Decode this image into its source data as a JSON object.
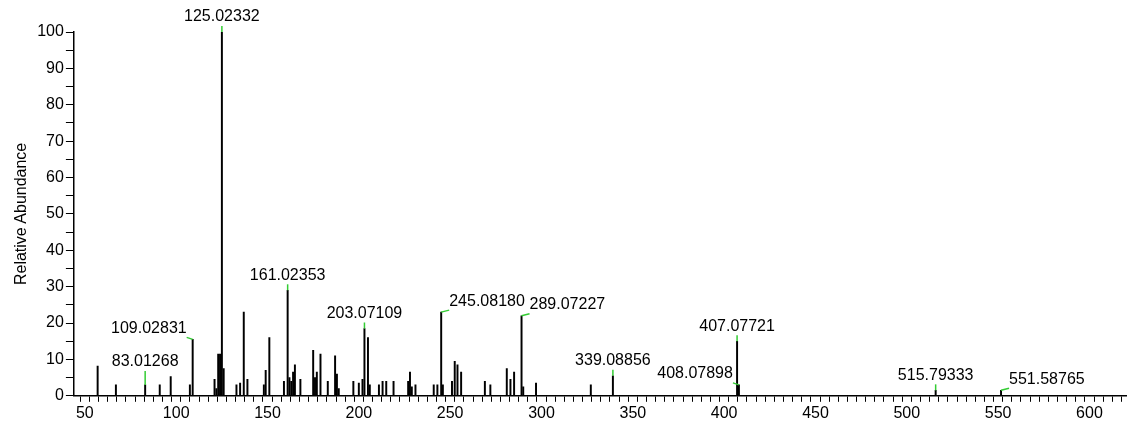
{
  "chart_data": {
    "type": "bar",
    "ylabel": "Relative Abundance",
    "color": "#000000",
    "x": [
      57,
      67,
      83.01268,
      91,
      97,
      107.5,
      109.02831,
      121,
      122,
      123,
      124,
      125.02332,
      126,
      133,
      135,
      137,
      139,
      148,
      149,
      151,
      159,
      161.02353,
      162,
      163,
      164,
      165,
      168,
      175,
      176,
      177,
      179,
      183,
      187,
      188,
      189,
      197,
      200,
      202,
      203.07109,
      205,
      206,
      211,
      213,
      215,
      219,
      227,
      228,
      229,
      231,
      241,
      243,
      245.0818,
      246,
      251,
      252.5,
      254,
      256,
      269,
      272,
      281,
      283,
      285,
      289.07227,
      290,
      297,
      327,
      339.08856,
      407.07721,
      408.07898,
      515.79333,
      551.58765
    ],
    "values": [
      8.2,
      3,
      3,
      3,
      5.3,
      3,
      15.5,
      4.5,
      2,
      11.5,
      11.5,
      100,
      7.5,
      3,
      3.5,
      23,
      4.5,
      3,
      7,
      16,
      4,
      29,
      5,
      4,
      6.5,
      8.5,
      4.5,
      12.5,
      5,
      6.5,
      11.5,
      4,
      11,
      6,
      2,
      4,
      3.5,
      4.5,
      18.5,
      16,
      3,
      3,
      4,
      4,
      4,
      4,
      6.5,
      2.5,
      3,
      3,
      3,
      23,
      3,
      4,
      9.5,
      8.5,
      6.5,
      4,
      3,
      7.5,
      4.5,
      6.5,
      22,
      2.5,
      3.5,
      3,
      5.5,
      15,
      3,
      1.5,
      1.5
    ],
    "xlim": [
      44,
      620
    ],
    "ylim": [
      0,
      100
    ],
    "xticks": [
      {
        "value": 45,
        "label": null
      },
      50,
      {
        "value": 55,
        "label": null
      },
      {
        "value": 60,
        "label": null
      },
      {
        "value": 65,
        "label": null
      },
      {
        "value": 70,
        "label": null
      },
      {
        "value": 75,
        "label": null
      },
      {
        "value": 80,
        "label": null
      },
      {
        "value": 85,
        "label": null
      },
      {
        "value": 90,
        "label": null
      },
      {
        "value": 95,
        "label": null
      },
      100,
      {
        "value": 105,
        "label": null
      },
      {
        "value": 110,
        "label": null
      },
      {
        "value": 115,
        "label": null
      },
      {
        "value": 120,
        "label": null
      },
      {
        "value": 125,
        "label": null
      },
      {
        "value": 130,
        "label": null
      },
      {
        "value": 135,
        "label": null
      },
      {
        "value": 140,
        "label": null
      },
      {
        "value": 145,
        "label": null
      },
      150,
      {
        "value": 155,
        "label": null
      },
      {
        "value": 160,
        "label": null
      },
      {
        "value": 165,
        "label": null
      },
      {
        "value": 170,
        "label": null
      },
      {
        "value": 175,
        "label": null
      },
      {
        "value": 180,
        "label": null
      },
      {
        "value": 185,
        "label": null
      },
      {
        "value": 190,
        "label": null
      },
      {
        "value": 195,
        "label": null
      },
      200,
      {
        "value": 205,
        "label": null
      },
      {
        "value": 210,
        "label": null
      },
      {
        "value": 215,
        "label": null
      },
      {
        "value": 220,
        "label": null
      },
      {
        "value": 225,
        "label": null
      },
      {
        "value": 230,
        "label": null
      },
      {
        "value": 235,
        "label": null
      },
      {
        "value": 240,
        "label": null
      },
      {
        "value": 245,
        "label": null
      },
      250,
      {
        "value": 255,
        "label": null
      },
      {
        "value": 260,
        "label": null
      },
      {
        "value": 265,
        "label": null
      },
      {
        "value": 270,
        "label": null
      },
      {
        "value": 275,
        "label": null
      },
      {
        "value": 280,
        "label": null
      },
      {
        "value": 285,
        "label": null
      },
      {
        "value": 290,
        "label": null
      },
      {
        "value": 295,
        "label": null
      },
      300,
      {
        "value": 305,
        "label": null
      },
      {
        "value": 310,
        "label": null
      },
      {
        "value": 315,
        "label": null
      },
      {
        "value": 320,
        "label": null
      },
      {
        "value": 325,
        "label": null
      },
      {
        "value": 330,
        "label": null
      },
      {
        "value": 335,
        "label": null
      },
      {
        "value": 340,
        "label": null
      },
      {
        "value": 345,
        "label": null
      },
      350,
      {
        "value": 355,
        "label": null
      },
      {
        "value": 360,
        "label": null
      },
      {
        "value": 365,
        "label": null
      },
      {
        "value": 370,
        "label": null
      },
      {
        "value": 375,
        "label": null
      },
      {
        "value": 380,
        "label": null
      },
      {
        "value": 385,
        "label": null
      },
      {
        "value": 390,
        "label": null
      },
      {
        "value": 395,
        "label": null
      },
      400,
      {
        "value": 405,
        "label": null
      },
      {
        "value": 410,
        "label": null
      },
      {
        "value": 415,
        "label": null
      },
      {
        "value": 420,
        "label": null
      },
      {
        "value": 425,
        "label": null
      },
      {
        "value": 430,
        "label": null
      },
      {
        "value": 435,
        "label": null
      },
      {
        "value": 440,
        "label": null
      },
      {
        "value": 445,
        "label": null
      },
      450,
      {
        "value": 455,
        "label": null
      },
      {
        "value": 460,
        "label": null
      },
      {
        "value": 465,
        "label": null
      },
      {
        "value": 470,
        "label": null
      },
      {
        "value": 475,
        "label": null
      },
      {
        "value": 480,
        "label": null
      },
      {
        "value": 485,
        "label": null
      },
      {
        "value": 490,
        "label": null
      },
      {
        "value": 495,
        "label": null
      },
      500,
      {
        "value": 505,
        "label": null
      },
      {
        "value": 510,
        "label": null
      },
      {
        "value": 515,
        "label": null
      },
      {
        "value": 520,
        "label": null
      },
      {
        "value": 525,
        "label": null
      },
      {
        "value": 530,
        "label": null
      },
      {
        "value": 535,
        "label": null
      },
      {
        "value": 540,
        "label": null
      },
      {
        "value": 545,
        "label": null
      },
      550,
      {
        "value": 555,
        "label": null
      },
      {
        "value": 560,
        "label": null
      },
      {
        "value": 565,
        "label": null
      },
      {
        "value": 570,
        "label": null
      },
      {
        "value": 575,
        "label": null
      },
      {
        "value": 580,
        "label": null
      },
      {
        "value": 585,
        "label": null
      },
      {
        "value": 590,
        "label": null
      },
      {
        "value": 595,
        "label": null
      },
      600,
      {
        "value": 605,
        "label": null
      },
      {
        "value": 610,
        "label": null
      },
      {
        "value": 615,
        "label": null
      }
    ],
    "yticks": [
      0,
      {
        "value": 5,
        "label": null
      },
      10,
      {
        "value": 15,
        "label": null
      },
      20,
      {
        "value": 25,
        "label": null
      },
      30,
      {
        "value": 35,
        "label": null
      },
      40,
      {
        "value": 45,
        "label": null
      },
      50,
      {
        "value": 55,
        "label": null
      },
      60,
      {
        "value": 65,
        "label": null
      },
      70,
      {
        "value": 75,
        "label": null
      },
      80,
      {
        "value": 85,
        "label": null
      },
      90,
      {
        "value": 95,
        "label": null
      },
      100
    ],
    "annotations": [
      {
        "text": "83.01268",
        "x": 83.01268,
        "y": 3
      },
      {
        "text": "109.02831",
        "x": 109.02831,
        "y": 15.5
      },
      {
        "text": "125.02332",
        "x": 125.02332,
        "y": 100
      },
      {
        "text": "161.02353",
        "x": 161.02353,
        "y": 29
      },
      {
        "text": "203.07109",
        "x": 203.07109,
        "y": 18.5
      },
      {
        "text": "245.08180",
        "x": 245.0818,
        "y": 23
      },
      {
        "text": "289.07227",
        "x": 289.07227,
        "y": 22
      },
      {
        "text": "339.08856",
        "x": 339.08856,
        "y": 5.5
      },
      {
        "text": "407.07721",
        "x": 407.07721,
        "y": 15
      },
      {
        "text": "408.07898",
        "x": 408.07898,
        "y": 3
      },
      {
        "text": "515.79333",
        "x": 515.79333,
        "y": 1.5
      },
      {
        "text": "551.58765",
        "x": 551.58765,
        "y": 1.5
      }
    ]
  }
}
